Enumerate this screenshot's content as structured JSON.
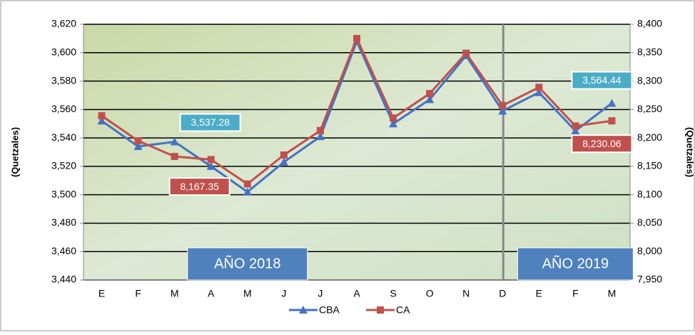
{
  "chart_data": {
    "type": "line",
    "categories": [
      "E",
      "F",
      "M",
      "A",
      "M",
      "J",
      "J",
      "A",
      "S",
      "O",
      "N",
      "D",
      "E",
      "F",
      "M"
    ],
    "series": [
      {
        "name": "CBA",
        "color": "#4472c4",
        "marker": "triangle",
        "values": [
          3552,
          3534,
          3537.28,
          3520,
          3502,
          3523,
          3541,
          3608,
          3550,
          3567,
          3598,
          3559,
          3572,
          3545,
          3564.44
        ],
        "value_labels": [
          null,
          null,
          "3,537.28",
          null,
          null,
          null,
          null,
          null,
          null,
          null,
          null,
          null,
          null,
          null,
          "3,564.44"
        ],
        "label_color": "#4bacc6"
      },
      {
        "name": "CA",
        "color": "#c0504d",
        "marker": "square",
        "axis": "y2",
        "values": [
          8239,
          8195,
          8167.35,
          8162,
          8119,
          8170,
          8213,
          8375,
          8235,
          8278,
          8349,
          8257,
          8289,
          8221,
          8230.06
        ],
        "value_labels": [
          null,
          null,
          "8,167.35",
          null,
          null,
          null,
          null,
          null,
          null,
          null,
          null,
          null,
          null,
          null,
          "8,230.06"
        ],
        "label_color": "#c0504d"
      }
    ],
    "ylabel": "(Quetzales)",
    "y2label": "(Quetzales)",
    "ylim": [
      3440,
      3620
    ],
    "yticks": [
      {
        "value": 3440,
        "label": "3,440"
      },
      {
        "value": 3460,
        "label": "3,460"
      },
      {
        "value": 3480,
        "label": "3,480"
      },
      {
        "value": 3500,
        "label": "3,500"
      },
      {
        "value": 3520,
        "label": "3,520"
      },
      {
        "value": 3540,
        "label": "3,540"
      },
      {
        "value": 3560,
        "label": "3,560"
      },
      {
        "value": 3580,
        "label": "3,580"
      },
      {
        "value": 3600,
        "label": "3,600"
      },
      {
        "value": 3620,
        "label": "3,620"
      }
    ],
    "y2lim": [
      7950,
      8400
    ],
    "y2ticks": [
      {
        "value": 7950,
        "label": "7,950"
      },
      {
        "value": 8000,
        "label": "8,000"
      },
      {
        "value": 8050,
        "label": "8,050"
      },
      {
        "value": 8100,
        "label": "8,100"
      },
      {
        "value": 8150,
        "label": "8,150"
      },
      {
        "value": 8200,
        "label": "8,200"
      },
      {
        "value": 8250,
        "label": "8,250"
      },
      {
        "value": 8300,
        "label": "8,300"
      },
      {
        "value": 8350,
        "label": "8,350"
      },
      {
        "value": 8400,
        "label": "8,400"
      }
    ],
    "grid": true,
    "legend": "bottom",
    "annotations": [
      {
        "text": "AÑO 2018",
        "category_index": 4
      },
      {
        "text": "AÑO 2019",
        "category_index": 13
      }
    ]
  }
}
